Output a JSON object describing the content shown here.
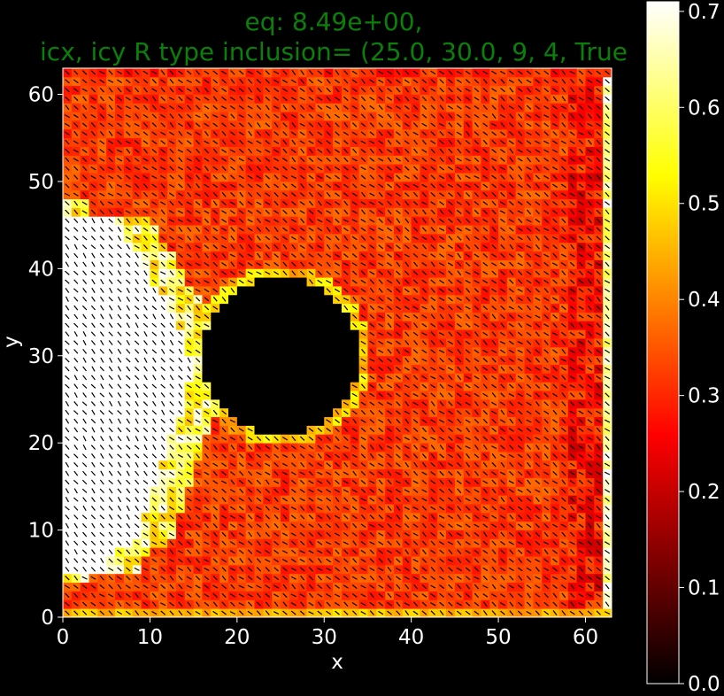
{
  "chart_data": {
    "type": "heatmap",
    "title_lines": [
      "eq: 8.49e+00,",
      "icx, icy R type inclusion= (25.0, 30.0, 9, 4, True"
    ],
    "xlabel": "x",
    "ylabel": "y",
    "xlim": [
      0,
      63
    ],
    "ylim": [
      0,
      63
    ],
    "x_ticks": [
      "0",
      "10",
      "20",
      "30",
      "40",
      "50",
      "60"
    ],
    "y_ticks": [
      "0",
      "10",
      "20",
      "30",
      "40",
      "50",
      "60"
    ],
    "colormap": "hot",
    "colorbar": {
      "range": [
        0.0,
        0.7
      ],
      "ticks": [
        "0.0",
        "0.1",
        "0.2",
        "0.3",
        "0.4",
        "0.5",
        "0.6",
        "0.7"
      ]
    },
    "inclusion": {
      "center_x": 25.0,
      "center_y": 30.0,
      "radius": 9,
      "value": 0.0
    },
    "field_description_values": {
      "background": 0.32,
      "left_saturated_region": 0.7,
      "right_edge_columns": 0.2
    },
    "vector_overlay": "short black glyphs on every grid cell"
  }
}
